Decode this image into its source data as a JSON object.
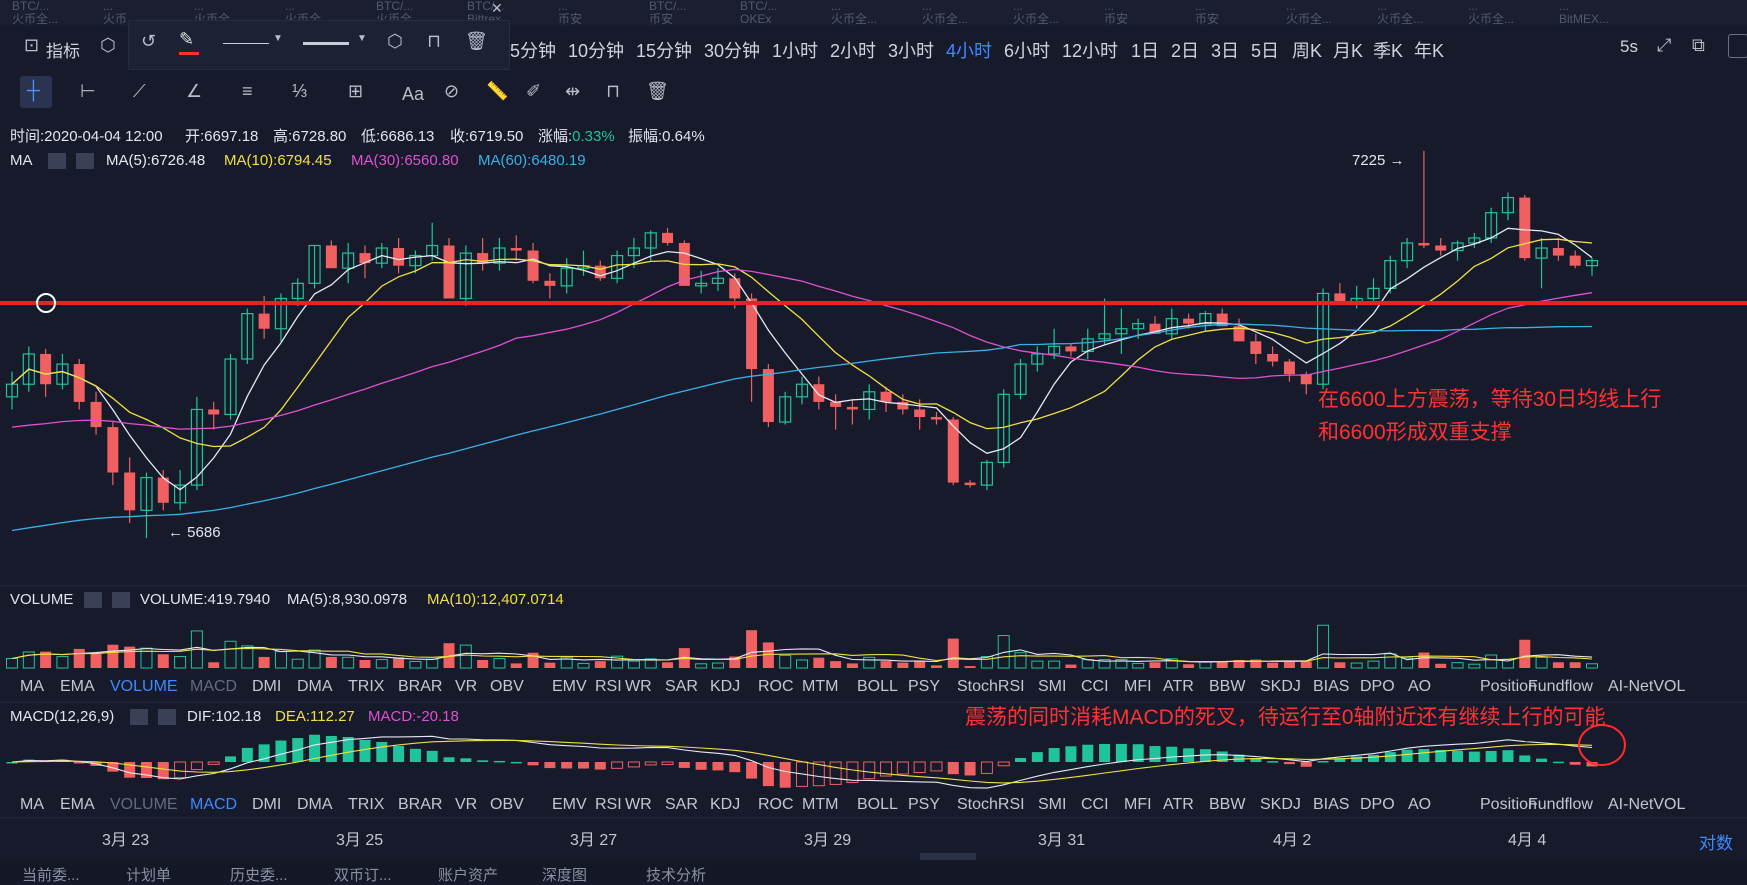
{
  "exchanges": [
    {
      "name": "BTC/...",
      "sub": "火币全..."
    },
    {
      "name": "...",
      "sub": "火币"
    },
    {
      "name": "...",
      "sub": "火币全..."
    },
    {
      "name": "...",
      "sub": "火币全..."
    },
    {
      "name": "BTC/...",
      "sub": "火币全..."
    },
    {
      "name": "BTC/...",
      "sub": "Bittrex"
    },
    {
      "name": "...",
      "sub": "币安"
    },
    {
      "name": "BTC/...",
      "sub": "币安"
    },
    {
      "name": "BTC/...",
      "sub": "OKEx"
    },
    {
      "name": "...",
      "sub": "火币全..."
    },
    {
      "name": "...",
      "sub": "火币全..."
    },
    {
      "name": "...",
      "sub": "火币全..."
    },
    {
      "name": "...",
      "sub": "币安"
    },
    {
      "name": "...",
      "sub": "币安"
    },
    {
      "name": "...",
      "sub": "火币全..."
    },
    {
      "name": "...",
      "sub": "火币全..."
    },
    {
      "name": "...",
      "sub": "火币全..."
    },
    {
      "name": "...",
      "sub": "BitMEX..."
    }
  ],
  "toolbar": {
    "indicator_label": "指标",
    "timeframes": [
      "5分钟",
      "10分钟",
      "15分钟",
      "30分钟",
      "1小时",
      "2小时",
      "3小时",
      "4小时",
      "6小时",
      "12小时",
      "1日",
      "2日",
      "3日",
      "5日",
      "周K",
      "月K",
      "季K",
      "年K"
    ],
    "active_timeframe": "4小时",
    "refresh": "5s",
    "text_tool": "Aa"
  },
  "info_line": {
    "time_label": "时间:",
    "time": "2020-04-04 12:00",
    "open_label": "开:",
    "open": "6697.18",
    "high_label": "高:",
    "high": "6728.80",
    "low_label": "低:",
    "low": "6686.13",
    "close_label": "收:",
    "close": "6719.50",
    "change_label": "涨幅:",
    "change": "0.33%",
    "amp_label": "振幅:",
    "amp": "0.64%"
  },
  "ma_line": {
    "label": "MA",
    "ma5": "MA(5):6726.48",
    "ma10": "MA(10):6794.45",
    "ma30": "MA(30):6560.80",
    "ma60": "MA(60):6480.19"
  },
  "volume_line": {
    "label": "VOLUME",
    "vol": "VOLUME:419.7940",
    "ma5": "MA(5):8,930.0978",
    "ma10": "MA(10):12,407.0714"
  },
  "macd_line": {
    "label": "MACD(12,26,9)",
    "dif": "DIF:102.18",
    "dea": "DEA:112.27",
    "macd": "MACD:-20.18"
  },
  "indicator_tabs": [
    "MA",
    "EMA",
    "VOLUME",
    "MACD",
    "DMI",
    "DMA",
    "TRIX",
    "BRAR",
    "VR",
    "OBV",
    "EMV",
    "RSI",
    "WR",
    "SAR",
    "KDJ",
    "ROC",
    "MTM",
    "BOLL",
    "PSY",
    "StochRSI",
    "SMI",
    "CCI",
    "MFI",
    "ATR",
    "BBW",
    "SKDJ",
    "BIAS",
    "DPO",
    "AO",
    "Position",
    "Fundflow",
    "AI-NetVOL"
  ],
  "dates": [
    "3月 23",
    "3月 25",
    "3月 27",
    "3月 29",
    "3月 31",
    "4月 2",
    "4月 4"
  ],
  "log_label": "对数",
  "price_marks": {
    "high": "7225 →",
    "low": "← 5686"
  },
  "annotations": {
    "main_1": "在6600上方震荡，等待30日均线上行",
    "main_2": "和6600形成双重支撑",
    "macd": "震荡的同时消耗MACD的死叉，待运行至0轴附近还有继续上行的可能"
  },
  "bottom_tabs": [
    "当前委...",
    "计划单",
    "历史委...",
    "双币订...",
    "账户资产",
    "深度图",
    "技术分析"
  ],
  "colors": {
    "up": "#f06060",
    "down": "#1fc49a",
    "ma5": "#e8e8f0",
    "ma10": "#f0e040",
    "ma30": "#e050d0",
    "ma60": "#3ab0e8",
    "accent": "#3d8bff",
    "annotation": "#ff2a2a",
    "bg": "#161a2b"
  },
  "chart_data": {
    "type": "candlestick",
    "interval": "4h",
    "x_start": "2020-03-22 08:00",
    "support_line": 6600,
    "ylim": [
      5500,
      7300
    ],
    "ohlc": [
      [
        6250,
        6350,
        6200,
        6300
      ],
      [
        6300,
        6450,
        6270,
        6420
      ],
      [
        6420,
        6440,
        6250,
        6300
      ],
      [
        6300,
        6420,
        6280,
        6380
      ],
      [
        6380,
        6400,
        6200,
        6230
      ],
      [
        6230,
        6270,
        6100,
        6130
      ],
      [
        6130,
        6150,
        5900,
        5950
      ],
      [
        5950,
        6010,
        5750,
        5800
      ],
      [
        5800,
        5950,
        5690,
        5930
      ],
      [
        5930,
        5960,
        5800,
        5830
      ],
      [
        5830,
        5960,
        5800,
        5900
      ],
      [
        5900,
        6250,
        5880,
        6200
      ],
      [
        6200,
        6230,
        6120,
        6180
      ],
      [
        6180,
        6420,
        6160,
        6400
      ],
      [
        6400,
        6600,
        6380,
        6580
      ],
      [
        6580,
        6650,
        6480,
        6520
      ],
      [
        6520,
        6660,
        6470,
        6640
      ],
      [
        6640,
        6720,
        6610,
        6700
      ],
      [
        6700,
        6850,
        6680,
        6850
      ],
      [
        6850,
        6870,
        6760,
        6760
      ],
      [
        6760,
        6860,
        6700,
        6820
      ],
      [
        6820,
        6850,
        6720,
        6780
      ],
      [
        6780,
        6860,
        6760,
        6840
      ],
      [
        6840,
        6880,
        6740,
        6770
      ],
      [
        6770,
        6830,
        6740,
        6810
      ],
      [
        6810,
        6940,
        6790,
        6850
      ],
      [
        6850,
        6880,
        6650,
        6640
      ],
      [
        6640,
        6850,
        6610,
        6820
      ],
      [
        6820,
        6880,
        6750,
        6780
      ],
      [
        6780,
        6880,
        6750,
        6840
      ],
      [
        6840,
        6890,
        6790,
        6830
      ],
      [
        6830,
        6860,
        6700,
        6710
      ],
      [
        6710,
        6740,
        6640,
        6690
      ],
      [
        6690,
        6800,
        6660,
        6760
      ],
      [
        6760,
        6830,
        6730,
        6770
      ],
      [
        6770,
        6790,
        6710,
        6720
      ],
      [
        6720,
        6830,
        6700,
        6810
      ],
      [
        6810,
        6880,
        6760,
        6840
      ],
      [
        6840,
        6910,
        6790,
        6900
      ],
      [
        6900,
        6920,
        6850,
        6860
      ],
      [
        6860,
        6870,
        6690,
        6690
      ],
      [
        6690,
        6750,
        6660,
        6700
      ],
      [
        6700,
        6760,
        6670,
        6720
      ],
      [
        6720,
        6740,
        6600,
        6640
      ],
      [
        6640,
        6660,
        6230,
        6360
      ],
      [
        6360,
        6380,
        6130,
        6150
      ],
      [
        6150,
        6270,
        6140,
        6250
      ],
      [
        6250,
        6330,
        6220,
        6300
      ],
      [
        6300,
        6330,
        6200,
        6230
      ],
      [
        6230,
        6260,
        6120,
        6210
      ],
      [
        6210,
        6240,
        6140,
        6200
      ],
      [
        6200,
        6300,
        6160,
        6270
      ],
      [
        6270,
        6290,
        6190,
        6230
      ],
      [
        6230,
        6260,
        6180,
        6200
      ],
      [
        6200,
        6240,
        6120,
        6170
      ],
      [
        6170,
        6190,
        6140,
        6160
      ],
      [
        6160,
        6170,
        5900,
        5910
      ],
      [
        5910,
        5920,
        5890,
        5900
      ],
      [
        5900,
        6000,
        5880,
        5990
      ],
      [
        5990,
        6280,
        5970,
        6260
      ],
      [
        6260,
        6400,
        6240,
        6380
      ],
      [
        6380,
        6450,
        6350,
        6420
      ],
      [
        6420,
        6520,
        6400,
        6450
      ],
      [
        6450,
        6460,
        6410,
        6430
      ],
      [
        6430,
        6520,
        6400,
        6480
      ],
      [
        6480,
        6640,
        6460,
        6500
      ],
      [
        6500,
        6600,
        6420,
        6520
      ],
      [
        6520,
        6560,
        6480,
        6540
      ],
      [
        6540,
        6570,
        6500,
        6500
      ],
      [
        6500,
        6600,
        6480,
        6560
      ],
      [
        6560,
        6580,
        6520,
        6540
      ],
      [
        6540,
        6590,
        6510,
        6580
      ],
      [
        6580,
        6600,
        6530,
        6530
      ],
      [
        6530,
        6560,
        6470,
        6470
      ],
      [
        6470,
        6500,
        6380,
        6420
      ],
      [
        6420,
        6450,
        6370,
        6390
      ],
      [
        6390,
        6400,
        6310,
        6340
      ],
      [
        6340,
        6350,
        6260,
        6300
      ],
      [
        6300,
        6680,
        6280,
        6660
      ],
      [
        6660,
        6700,
        6630,
        6620
      ],
      [
        6620,
        6690,
        6600,
        6640
      ],
      [
        6640,
        6720,
        6620,
        6680
      ],
      [
        6680,
        6810,
        6660,
        6790
      ],
      [
        6790,
        6880,
        6760,
        6860
      ],
      [
        6860,
        7225,
        6840,
        6850
      ],
      [
        6850,
        6880,
        6810,
        6830
      ],
      [
        6830,
        6870,
        6790,
        6860
      ],
      [
        6860,
        6900,
        6840,
        6880
      ],
      [
        6880,
        7000,
        6860,
        6980
      ],
      [
        6980,
        7060,
        6950,
        7040
      ],
      [
        7040,
        7050,
        6790,
        6800
      ],
      [
        6800,
        6880,
        6680,
        6840
      ],
      [
        6840,
        6880,
        6790,
        6810
      ],
      [
        6810,
        6830,
        6760,
        6770
      ],
      [
        6770,
        6800,
        6730,
        6790
      ]
    ],
    "volume_ylim": [
      0,
      55000
    ],
    "macd_ylim": [
      -120,
      140
    ]
  }
}
